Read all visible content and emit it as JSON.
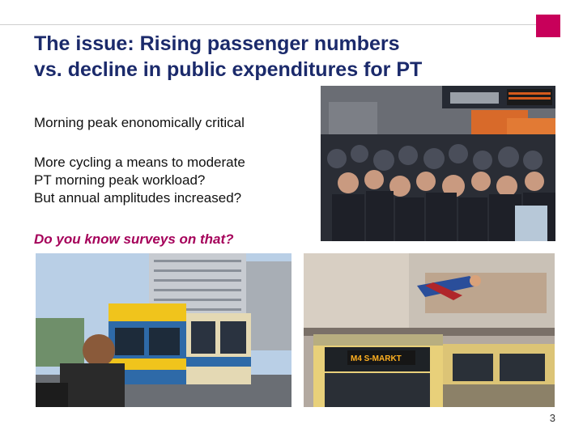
{
  "slide": {
    "title_lines": [
      "The issue: Rising passenger numbers",
      "vs. decline in public expenditures for PT"
    ],
    "point1": "Morning peak enonomically critical",
    "point2_lines": [
      "More cycling a means to moderate",
      "PT morning peak workload?",
      "But annual amplitudes increased?"
    ],
    "question": "Do you know surveys on that?",
    "page_number": "3",
    "colors": {
      "title": "#1b2a6b",
      "accent": "#c8005a",
      "question": "#a5005a"
    }
  },
  "photos": {
    "crowd": {
      "icon": "crowded-platform-photo"
    },
    "tram_cyclist": {
      "icon": "tram-and-cyclist-photo"
    },
    "tram_billboard": {
      "icon": "tram-and-billboard-photo",
      "tram_sign": "M4  S-MARKT"
    }
  }
}
